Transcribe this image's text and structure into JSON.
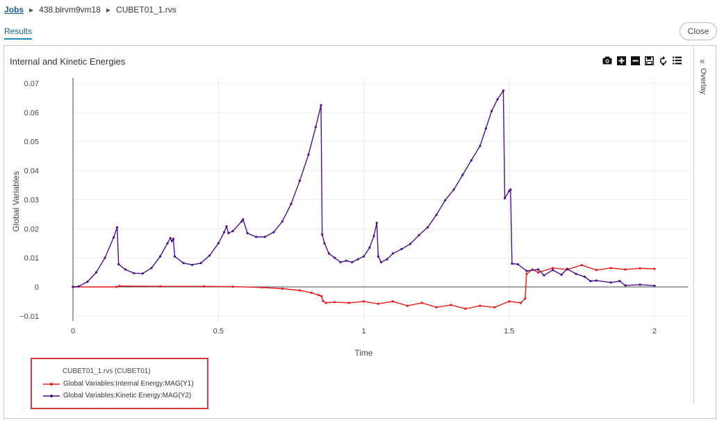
{
  "breadcrumb": {
    "root": "Jobs",
    "job": "438.blrvm9vm18",
    "file": "CUBET01_1.rvs"
  },
  "tabs": {
    "results": "Results"
  },
  "buttons": {
    "close": "Close"
  },
  "overlay": {
    "label": "Overlay"
  },
  "toolbar_icons": [
    "camera-icon",
    "zoom-in-icon",
    "zoom-out-icon",
    "save-icon",
    "reset-icon",
    "list-icon"
  ],
  "colors": {
    "internal": "#e8191c",
    "kinetic": "#4b0f8a",
    "legend_border": "#d9363e"
  },
  "chart_data": {
    "type": "line",
    "title": "Internal and Kinetic Energies",
    "xlabel": "Time",
    "ylabel": "Global Variables",
    "xlim": [
      0,
      2
    ],
    "ylim": [
      -0.015,
      0.072
    ],
    "x_ticks": [
      0,
      0.5,
      1,
      1.5,
      2
    ],
    "x_tick_labels": [
      "0",
      "0.5",
      "1",
      "1.5",
      "2"
    ],
    "y_ticks": [
      -0.01,
      0,
      0.01,
      0.02,
      0.03,
      0.04,
      0.05,
      0.06,
      0.07
    ],
    "y_tick_labels": [
      "−0.01",
      "0",
      "0.01",
      "0.02",
      "0.03",
      "0.04",
      "0.05",
      "0.06",
      "0.07"
    ],
    "grid": true,
    "legend_position": "bottom-left",
    "legend_title": "CUBET01_1.rvs (CUBET01)",
    "series": [
      {
        "name": "Global Variables:Internal Energy:MAG(Y1)",
        "color": "#e8191c",
        "points": [
          [
            0,
            0
          ],
          [
            0.15,
            0
          ],
          [
            0.16,
            0.0003
          ],
          [
            0.3,
            0.0002
          ],
          [
            0.45,
            0.0002
          ],
          [
            0.55,
            0.0001
          ],
          [
            0.65,
            -0.0002
          ],
          [
            0.72,
            -0.0006
          ],
          [
            0.78,
            -0.0012
          ],
          [
            0.82,
            -0.002
          ],
          [
            0.845,
            -0.0028
          ],
          [
            0.855,
            -0.0032
          ],
          [
            0.86,
            -0.0048
          ],
          [
            0.87,
            -0.0055
          ],
          [
            0.9,
            -0.0052
          ],
          [
            0.95,
            -0.0055
          ],
          [
            1.0,
            -0.005
          ],
          [
            1.05,
            -0.0058
          ],
          [
            1.1,
            -0.005
          ],
          [
            1.15,
            -0.0065
          ],
          [
            1.2,
            -0.0055
          ],
          [
            1.25,
            -0.007
          ],
          [
            1.3,
            -0.0062
          ],
          [
            1.35,
            -0.0075
          ],
          [
            1.4,
            -0.0065
          ],
          [
            1.45,
            -0.007
          ],
          [
            1.5,
            -0.005
          ],
          [
            1.54,
            -0.0055
          ],
          [
            1.555,
            -0.004
          ],
          [
            1.56,
            0.0045
          ],
          [
            1.58,
            0.006
          ],
          [
            1.6,
            0.005
          ],
          [
            1.65,
            0.0065
          ],
          [
            1.7,
            0.006
          ],
          [
            1.75,
            0.0075
          ],
          [
            1.8,
            0.0058
          ],
          [
            1.85,
            0.0065
          ],
          [
            1.9,
            0.006
          ],
          [
            1.95,
            0.0064
          ],
          [
            2.0,
            0.0062
          ]
        ]
      },
      {
        "name": "Global Variables:Kinetic Energy:MAG(Y2)",
        "color": "#4b0f8a",
        "points": [
          [
            0,
            0
          ],
          [
            0.02,
            0.0002
          ],
          [
            0.05,
            0.0018
          ],
          [
            0.08,
            0.005
          ],
          [
            0.11,
            0.01
          ],
          [
            0.14,
            0.017
          ],
          [
            0.152,
            0.0205
          ],
          [
            0.157,
            0.0078
          ],
          [
            0.18,
            0.006
          ],
          [
            0.21,
            0.0047
          ],
          [
            0.24,
            0.0046
          ],
          [
            0.27,
            0.0065
          ],
          [
            0.3,
            0.0105
          ],
          [
            0.325,
            0.015
          ],
          [
            0.335,
            0.0168
          ],
          [
            0.34,
            0.0158
          ],
          [
            0.345,
            0.0165
          ],
          [
            0.35,
            0.0105
          ],
          [
            0.38,
            0.0082
          ],
          [
            0.41,
            0.0076
          ],
          [
            0.44,
            0.0082
          ],
          [
            0.47,
            0.0108
          ],
          [
            0.5,
            0.015
          ],
          [
            0.52,
            0.0188
          ],
          [
            0.528,
            0.0208
          ],
          [
            0.535,
            0.0185
          ],
          [
            0.55,
            0.0192
          ],
          [
            0.58,
            0.0225
          ],
          [
            0.585,
            0.0232
          ],
          [
            0.6,
            0.0185
          ],
          [
            0.63,
            0.0172
          ],
          [
            0.66,
            0.0172
          ],
          [
            0.69,
            0.0188
          ],
          [
            0.72,
            0.0225
          ],
          [
            0.75,
            0.0285
          ],
          [
            0.78,
            0.0365
          ],
          [
            0.81,
            0.0455
          ],
          [
            0.835,
            0.055
          ],
          [
            0.853,
            0.0625
          ],
          [
            0.857,
            0.018
          ],
          [
            0.865,
            0.015
          ],
          [
            0.88,
            0.0115
          ],
          [
            0.9,
            0.01
          ],
          [
            0.92,
            0.0085
          ],
          [
            0.94,
            0.009
          ],
          [
            0.96,
            0.0085
          ],
          [
            0.98,
            0.0095
          ],
          [
            1.0,
            0.0105
          ],
          [
            1.02,
            0.0135
          ],
          [
            1.035,
            0.0175
          ],
          [
            1.045,
            0.022
          ],
          [
            1.05,
            0.0105
          ],
          [
            1.06,
            0.0085
          ],
          [
            1.08,
            0.0095
          ],
          [
            1.1,
            0.0115
          ],
          [
            1.13,
            0.013
          ],
          [
            1.16,
            0.0148
          ],
          [
            1.19,
            0.0178
          ],
          [
            1.22,
            0.0205
          ],
          [
            1.25,
            0.0248
          ],
          [
            1.28,
            0.0298
          ],
          [
            1.31,
            0.0335
          ],
          [
            1.34,
            0.0385
          ],
          [
            1.37,
            0.0435
          ],
          [
            1.4,
            0.0485
          ],
          [
            1.42,
            0.0545
          ],
          [
            1.44,
            0.0605
          ],
          [
            1.46,
            0.0645
          ],
          [
            1.48,
            0.0675
          ],
          [
            1.485,
            0.0305
          ],
          [
            1.5,
            0.033
          ],
          [
            1.505,
            0.0335
          ],
          [
            1.51,
            0.008
          ],
          [
            1.53,
            0.0078
          ],
          [
            1.56,
            0.0055
          ],
          [
            1.6,
            0.006
          ],
          [
            1.62,
            0.004
          ],
          [
            1.65,
            0.0058
          ],
          [
            1.68,
            0.0042
          ],
          [
            1.7,
            0.0062
          ],
          [
            1.73,
            0.0045
          ],
          [
            1.76,
            0.0035
          ],
          [
            1.78,
            0.002
          ],
          [
            1.8,
            0.0022
          ],
          [
            1.85,
            0.0015
          ],
          [
            1.88,
            0.002
          ],
          [
            1.9,
            0.0005
          ],
          [
            1.95,
            0.0008
          ],
          [
            2.0,
            0.0004
          ]
        ]
      }
    ]
  }
}
